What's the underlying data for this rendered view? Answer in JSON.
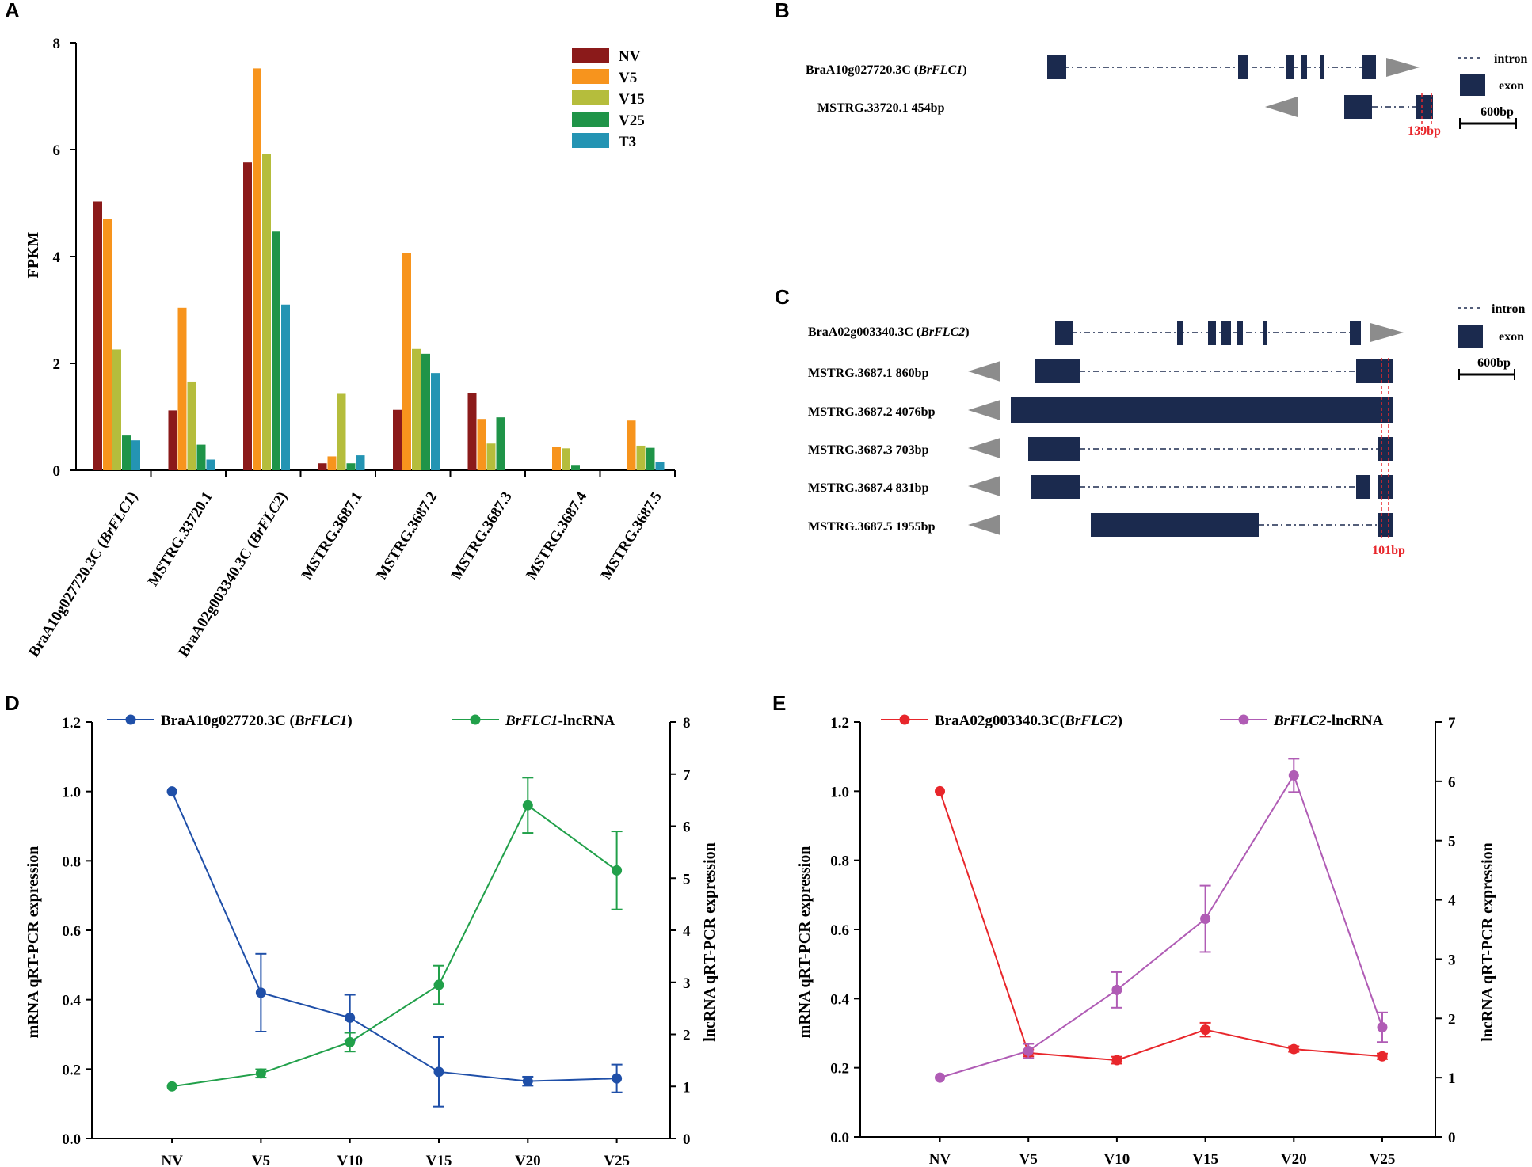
{
  "panels": {
    "a": "A",
    "b": "B",
    "c": "C",
    "d": "D",
    "e": "E"
  },
  "colors": {
    "NV": "#8b1a1a",
    "V5": "#f7941d",
    "V15": "#b5bd3c",
    "V25": "#1f9448",
    "T3": "#2494b3",
    "exon": "#1b2a4e",
    "arrow": "#8c8c8c",
    "marker": "#e8262b",
    "blue": "#1f4fa8",
    "green": "#21a04a",
    "red": "#e8262b",
    "purple": "#b05cb5"
  },
  "chart_data": [
    {
      "id": "A",
      "type": "bar",
      "ylabel": "FPKM",
      "ylim": [
        0,
        8
      ],
      "yticks": [
        "0",
        "2",
        "4",
        "6",
        "8"
      ],
      "categories": [
        {
          "prefix": "BraA10g027720.3C (",
          "italic": "BrFLC1",
          "suffix": ")"
        },
        {
          "prefix": "MSTRG.33720.1",
          "italic": "",
          "suffix": ""
        },
        {
          "prefix": "BraA02g003340.3C (",
          "italic": "BrFLC2",
          "suffix": ")"
        },
        {
          "prefix": "MSTRG.3687.1",
          "italic": "",
          "suffix": ""
        },
        {
          "prefix": "MSTRG.3687.2",
          "italic": "",
          "suffix": ""
        },
        {
          "prefix": "MSTRG.3687.3",
          "italic": "",
          "suffix": ""
        },
        {
          "prefix": "MSTRG.3687.4",
          "italic": "",
          "suffix": ""
        },
        {
          "prefix": "MSTRG.3687.5",
          "italic": "",
          "suffix": ""
        }
      ],
      "series": [
        {
          "name": "NV",
          "values": [
            5.03,
            1.12,
            5.76,
            0.13,
            1.13,
            1.45,
            0,
            0
          ]
        },
        {
          "name": "V5",
          "values": [
            4.7,
            3.04,
            7.52,
            0.26,
            4.06,
            0.96,
            0.44,
            0.93
          ]
        },
        {
          "name": "V15",
          "values": [
            2.26,
            1.66,
            5.92,
            1.43,
            2.27,
            0.5,
            0.41,
            0.46
          ]
        },
        {
          "name": "V25",
          "values": [
            0.65,
            0.48,
            4.47,
            0.13,
            2.18,
            0.99,
            0.1,
            0.42
          ]
        },
        {
          "name": "T3",
          "values": [
            0.56,
            0.2,
            3.1,
            0.28,
            1.82,
            0,
            0,
            0.16
          ]
        }
      ]
    },
    {
      "id": "D",
      "type": "line",
      "x": [
        "NV",
        "V5",
        "V10",
        "V15",
        "V20",
        "V25"
      ],
      "ylabel_left": "mRNA qRT-PCR expression",
      "ylabel_right": "lncRNA qRT-PCR expression",
      "ylim_left": [
        0,
        1.2
      ],
      "yticks_left": [
        "0.0",
        "0.2",
        "0.4",
        "0.6",
        "0.8",
        "1.0",
        "1.2"
      ],
      "ylim_right": [
        0,
        8
      ],
      "yticks_right": [
        "0",
        "1",
        "2",
        "3",
        "4",
        "5",
        "6",
        "7",
        "8"
      ],
      "series": [
        {
          "name_prefix": "BraA10g027720.3C (",
          "name_italic": "BrFLC1",
          "name_suffix": ")",
          "color": "#1f4fa8",
          "axis": "left",
          "values": [
            1.0,
            0.42,
            0.348,
            0.192,
            0.165,
            0.173
          ],
          "errors": [
            0,
            0.112,
            0.066,
            0.1,
            0.013,
            0.04
          ]
        },
        {
          "name_prefix": "",
          "name_italic": "BrFLC1",
          "name_suffix": "-lncRNA",
          "color": "#21a04a",
          "axis": "right",
          "values": [
            1.0,
            1.25,
            1.85,
            2.95,
            6.4,
            5.15
          ],
          "errors": [
            0,
            0.08,
            0.18,
            0.37,
            0.53,
            0.75
          ]
        }
      ]
    },
    {
      "id": "E",
      "type": "line",
      "x": [
        "NV",
        "V5",
        "V10",
        "V15",
        "V20",
        "V25"
      ],
      "ylabel_left": "mRNA qRT-PCR expression",
      "ylabel_right": "lncRNA qRT-PCR expression",
      "ylim_left": [
        0,
        1.2
      ],
      "yticks_left": [
        "0.0",
        "0.2",
        "0.4",
        "0.6",
        "0.8",
        "1.0",
        "1.2"
      ],
      "ylim_right": [
        0,
        7
      ],
      "yticks_right": [
        "0",
        "1",
        "2",
        "3",
        "4",
        "5",
        "6",
        "7"
      ],
      "series": [
        {
          "name_prefix": "BraA02g003340.3C(",
          "name_italic": "BrFLC2",
          "name_suffix": ")",
          "color": "#e8262b",
          "axis": "left",
          "values": [
            1.0,
            0.243,
            0.222,
            0.31,
            0.254,
            0.233
          ],
          "errors": [
            0,
            0.01,
            0.01,
            0.02,
            0.008,
            0.008
          ]
        },
        {
          "name_prefix": "",
          "name_italic": "BrFLC2",
          "name_suffix": "-lncRNA",
          "color": "#b05cb5",
          "axis": "right",
          "values": [
            1.0,
            1.45,
            2.48,
            3.68,
            6.1,
            1.85
          ],
          "errors": [
            0,
            0.12,
            0.3,
            0.56,
            0.28,
            0.25
          ]
        }
      ]
    }
  ],
  "structure_b": {
    "gene_prefix": "BraA10g027720.3C (",
    "gene_italic": "BrFLC1",
    "gene_suffix": ")",
    "lnc_label": "MSTRG.33720.1  454bp",
    "marker_label": "139bp",
    "legend_intron": "intron",
    "legend_exon": "exon",
    "scale_label": "600bp"
  },
  "structure_c": {
    "gene_prefix": "BraA02g003340.3C (",
    "gene_italic": "BrFLC2",
    "gene_suffix": ")",
    "transcripts": [
      "MSTRG.3687.1  860bp",
      "MSTRG.3687.2  4076bp",
      "MSTRG.3687.3  703bp",
      "MSTRG.3687.4  831bp",
      "MSTRG.3687.5 1955bp"
    ],
    "marker_label": "101bp",
    "legend_intron": "intron",
    "legend_exon": "exon",
    "scale_label": "600bp"
  }
}
